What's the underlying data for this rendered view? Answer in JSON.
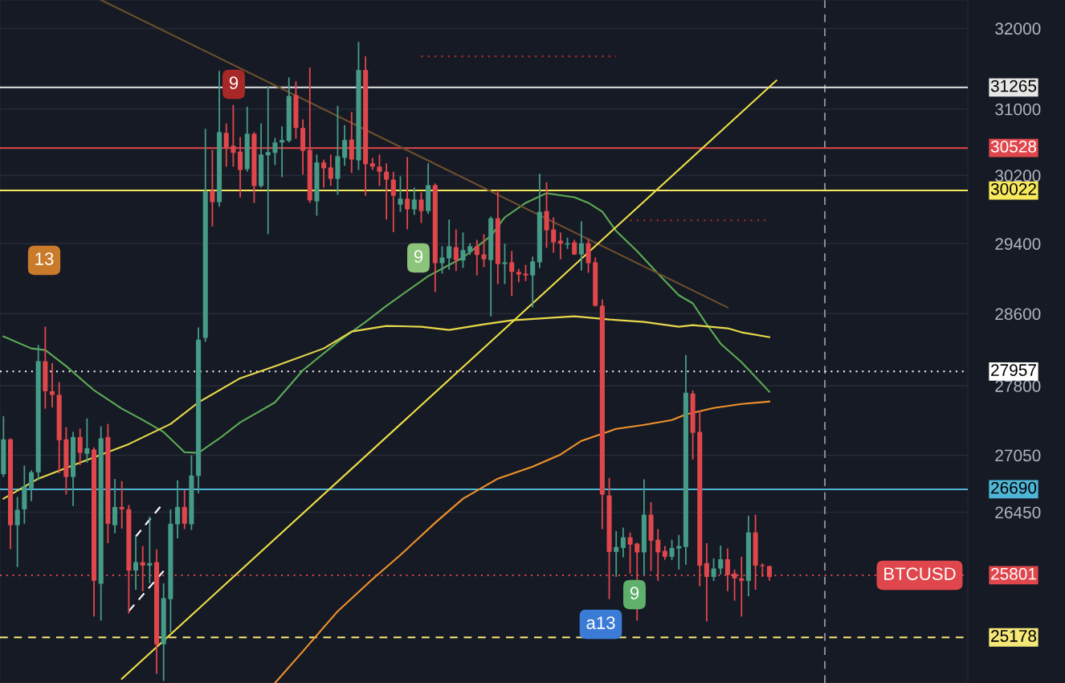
{
  "chart_data": {
    "type": "candlestick",
    "log": true,
    "grid": "y",
    "tick_labels": "y",
    "ylim": [
      24730,
      32360
    ],
    "yticks": [
      26450,
      27050,
      27800,
      28600,
      29400,
      30200,
      31000,
      32000
    ],
    "categories": [
      null,
      null,
      null,
      null,
      null,
      null,
      null,
      null,
      null,
      null,
      null,
      null,
      null,
      null,
      null,
      null,
      null,
      null,
      null,
      null,
      null,
      null,
      null,
      null,
      null,
      null,
      null,
      null,
      null,
      null,
      null,
      null,
      null,
      null,
      null,
      null,
      null,
      null,
      null,
      null,
      null,
      null,
      null,
      null,
      null,
      null,
      null,
      null,
      null,
      null,
      null,
      null,
      null,
      null,
      null,
      null,
      null,
      null,
      null,
      null,
      null,
      null,
      null,
      null,
      null,
      null,
      null,
      null,
      null,
      null,
      null,
      null,
      null,
      null,
      null,
      null,
      null,
      null,
      null,
      null,
      null,
      null,
      null,
      null,
      null,
      null,
      null,
      null,
      null,
      null,
      null,
      null,
      null,
      null,
      null,
      null,
      null,
      null,
      null,
      null,
      null,
      null,
      null,
      null,
      null,
      null,
      null,
      null,
      null,
      null,
      null,
      null,
      null,
      null,
      null,
      null,
      null,
      null,
      null,
      null,
      null,
      null,
      null,
      null,
      null,
      null,
      null,
      null,
      null,
      null,
      null,
      null,
      null,
      null,
      null,
      null,
      null,
      null,
      null
    ],
    "ohlc": [
      [
        26850,
        27470,
        26820,
        27220
      ],
      [
        27220,
        27230,
        26070,
        26315
      ],
      [
        26315,
        26610,
        25885,
        26475
      ],
      [
        26480,
        26940,
        26330,
        26720
      ],
      [
        26700,
        26890,
        26565,
        26870
      ],
      [
        26870,
        28250,
        26785,
        28070
      ],
      [
        28070,
        28455,
        27550,
        27740
      ],
      [
        27740,
        28050,
        27565,
        27700
      ],
      [
        27700,
        27840,
        26860,
        27210
      ],
      [
        27220,
        27350,
        26635,
        26820
      ],
      [
        26820,
        27300,
        26515,
        27245
      ],
      [
        27245,
        27335,
        26945,
        27075
      ],
      [
        27065,
        27445,
        26970,
        27125
      ],
      [
        27110,
        27135,
        25385,
        25745
      ],
      [
        25715,
        27360,
        25345,
        27230
      ],
      [
        27245,
        27385,
        26130,
        26330
      ],
      [
        26315,
        26800,
        26230,
        26505
      ],
      [
        26505,
        26775,
        26280,
        26480
      ],
      [
        26480,
        26525,
        25415,
        25850
      ],
      [
        25850,
        26205,
        25655,
        25935
      ],
      [
        25935,
        26100,
        25640,
        25900
      ],
      [
        25900,
        26405,
        25720,
        25925
      ],
      [
        25935,
        26065,
        24820,
        25110
      ],
      [
        25110,
        25720,
        24750,
        25570
      ],
      [
        25560,
        26480,
        25225,
        26330
      ],
      [
        26325,
        26785,
        26180,
        26505
      ],
      [
        26505,
        26685,
        26275,
        26330
      ],
      [
        26325,
        27050,
        26265,
        26835
      ],
      [
        26830,
        28445,
        26650,
        28310
      ],
      [
        28330,
        30760,
        28285,
        30010
      ],
      [
        30020,
        30505,
        29600,
        29885
      ],
      [
        29885,
        31470,
        29830,
        30720
      ],
      [
        30710,
        30825,
        30305,
        30535
      ],
      [
        30555,
        31050,
        30305,
        30470
      ],
      [
        30485,
        30660,
        29940,
        30265
      ],
      [
        30275,
        31030,
        30245,
        30700
      ],
      [
        30700,
        30720,
        29875,
        30075
      ],
      [
        30075,
        30825,
        30055,
        30450
      ],
      [
        30440,
        31280,
        29510,
        30480
      ],
      [
        30470,
        30650,
        30325,
        30595
      ],
      [
        30595,
        30790,
        30180,
        30625
      ],
      [
        30615,
        31390,
        30595,
        31160
      ],
      [
        31170,
        31340,
        30640,
        30770
      ],
      [
        30770,
        30875,
        30210,
        30495
      ],
      [
        30505,
        31510,
        29875,
        29905
      ],
      [
        29895,
        30450,
        29725,
        30355
      ],
      [
        30355,
        30390,
        30055,
        30285
      ],
      [
        30295,
        30450,
        30075,
        30160
      ],
      [
        30160,
        31040,
        29970,
        30430
      ],
      [
        30410,
        30805,
        30315,
        30625
      ],
      [
        30630,
        30965,
        30230,
        30390
      ],
      [
        30380,
        31830,
        30265,
        31480
      ],
      [
        31480,
        31650,
        29960,
        30335
      ],
      [
        30345,
        30410,
        30265,
        30305
      ],
      [
        30305,
        30450,
        30075,
        30245
      ],
      [
        30245,
        30345,
        29680,
        30150
      ],
      [
        30150,
        30245,
        29535,
        29960
      ],
      [
        29855,
        30190,
        29770,
        29925
      ],
      [
        29925,
        30420,
        29565,
        29800
      ],
      [
        29800,
        30055,
        29735,
        29915
      ],
      [
        29915,
        30000,
        29640,
        29780
      ],
      [
        29780,
        30345,
        29745,
        30085
      ],
      [
        30085,
        30105,
        28845,
        29175
      ],
      [
        29175,
        29370,
        29055,
        29240
      ],
      [
        29230,
        29680,
        29100,
        29370
      ],
      [
        29360,
        29565,
        29085,
        29210
      ],
      [
        29205,
        29530,
        29120,
        29325
      ],
      [
        29305,
        29405,
        29270,
        29370
      ],
      [
        29370,
        29445,
        29035,
        29270
      ],
      [
        29275,
        29510,
        29130,
        29220
      ],
      [
        29210,
        29715,
        28570,
        29695
      ],
      [
        29695,
        30025,
        28935,
        29165
      ],
      [
        29165,
        29400,
        28935,
        29185
      ],
      [
        29185,
        29315,
        28800,
        29075
      ],
      [
        29075,
        29110,
        28955,
        29045
      ],
      [
        29055,
        29155,
        28970,
        29035
      ],
      [
        29035,
        29250,
        28670,
        29195
      ],
      [
        29185,
        30220,
        29120,
        29770
      ],
      [
        29780,
        30120,
        29350,
        29555
      ],
      [
        29565,
        29705,
        29295,
        29415
      ],
      [
        29435,
        29530,
        29220,
        29400
      ],
      [
        29390,
        29470,
        29340,
        29405
      ],
      [
        29415,
        29445,
        29270,
        29275
      ],
      [
        29275,
        29660,
        29090,
        29405
      ],
      [
        29405,
        29455,
        29065,
        29175
      ],
      [
        29185,
        29240,
        28680,
        28690
      ],
      [
        28690,
        28760,
        26275,
        26635
      ],
      [
        26625,
        26810,
        25560,
        26040
      ],
      [
        26040,
        26255,
        25785,
        26090
      ],
      [
        26080,
        26290,
        25985,
        26190
      ],
      [
        26190,
        26240,
        25820,
        26115
      ],
      [
        26125,
        26135,
        25345,
        26035
      ],
      [
        26035,
        26795,
        25805,
        26425
      ],
      [
        26425,
        26555,
        25845,
        26155
      ],
      [
        26165,
        26275,
        25745,
        26035
      ],
      [
        26050,
        26100,
        25960,
        25990
      ],
      [
        25990,
        26165,
        25955,
        26080
      ],
      [
        26075,
        26215,
        25860,
        26100
      ],
      [
        26090,
        28140,
        25910,
        27725
      ],
      [
        27715,
        27750,
        27005,
        27290
      ],
      [
        27300,
        27530,
        25690,
        25900
      ],
      [
        25925,
        26130,
        25335,
        25785
      ],
      [
        25785,
        25975,
        25745,
        25870
      ],
      [
        25870,
        26105,
        25810,
        25965
      ],
      [
        25965,
        26075,
        25640,
        25805
      ],
      [
        25820,
        25860,
        25545,
        25770
      ],
      [
        25770,
        25990,
        25385,
        25745
      ],
      [
        25745,
        26415,
        25590,
        26240
      ],
      [
        26240,
        26425,
        25655,
        25900
      ],
      [
        25900,
        25925,
        25785,
        25895
      ],
      [
        25895,
        25900,
        25745,
        25785
      ],
      null,
      null,
      null,
      null,
      null,
      null,
      null,
      null,
      null,
      null,
      null,
      null,
      null,
      null,
      null,
      null,
      null,
      null,
      null,
      null,
      null,
      null,
      null,
      null,
      null,
      null,
      null,
      null
    ],
    "series": [
      {
        "type": "line",
        "color": "#5cab55",
        "line_style": "solid",
        "values": [
          28345,
          null,
          null,
          null,
          28212,
          null,
          28194,
          null,
          null,
          28016,
          null,
          null,
          null,
          27751,
          null,
          null,
          null,
          27550,
          null,
          null,
          27428,
          null,
          null,
          27298,
          null,
          null,
          27083,
          null,
          27075,
          null,
          null,
          27229,
          null,
          null,
          27402,
          null,
          null,
          null,
          null,
          27619,
          null,
          null,
          null,
          27971,
          null,
          null,
          null,
          null,
          28283,
          null,
          null,
          null,
          28508,
          null,
          null,
          28689,
          null,
          null,
          null,
          null,
          null,
          29027,
          null,
          null,
          null,
          null,
          29240,
          null,
          null,
          null,
          29490,
          null,
          29706,
          null,
          null,
          29876,
          null,
          null,
          29990,
          null,
          null,
          null,
          29942,
          null,
          29876,
          null,
          29772,
          null,
          29546,
          null,
          null,
          29314,
          null,
          null,
          29055,
          null,
          null,
          28808,
          null,
          28717,
          null,
          28481,
          null,
          28265,
          null,
          null,
          28060,
          null,
          null,
          null,
          27734,
          null,
          null,
          null,
          null,
          null,
          null,
          null,
          null,
          null,
          null,
          null,
          null,
          null,
          null,
          null,
          null,
          null,
          null,
          null,
          null,
          null,
          null,
          null,
          null,
          null,
          null,
          null,
          null
        ]
      },
      {
        "type": "line",
        "color": "#e8d84a",
        "line_style": "solid",
        "values": [
          26591,
          null,
          null,
          null,
          null,
          26802,
          null,
          null,
          null,
          null,
          null,
          26972,
          null,
          null,
          null,
          null,
          null,
          null,
          27169,
          null,
          null,
          null,
          null,
          null,
          27385,
          null,
          null,
          null,
          27619,
          null,
          null,
          null,
          null,
          null,
          27883,
          null,
          null,
          null,
          null,
          28016,
          null,
          null,
          null,
          null,
          null,
          null,
          28212,
          null,
          null,
          null,
          28400,
          null,
          null,
          null,
          null,
          28463,
          null,
          null,
          null,
          null,
          28454,
          null,
          null,
          null,
          28418,
          null,
          null,
          null,
          null,
          28481,
          null,
          null,
          null,
          28526,
          null,
          null,
          null,
          null,
          null,
          null,
          null,
          null,
          28571,
          null,
          null,
          null,
          null,
          28535,
          null,
          null,
          null,
          null,
          28508,
          null,
          null,
          null,
          null,
          28454,
          null,
          28472,
          null,
          null,
          null,
          null,
          28436,
          null,
          28391,
          null,
          null,
          null,
          28337,
          null,
          null,
          null,
          null,
          null,
          null,
          null,
          null,
          null,
          null,
          null,
          null,
          null,
          null,
          null,
          null,
          null,
          null,
          null,
          null,
          null,
          null,
          null,
          null,
          null,
          null,
          null,
          null
        ]
      },
      {
        "type": "line",
        "color": "#f0922b",
        "line_style": "solid",
        "values": [
          null,
          null,
          null,
          null,
          null,
          null,
          null,
          null,
          null,
          null,
          null,
          null,
          null,
          null,
          null,
          null,
          null,
          null,
          null,
          null,
          null,
          null,
          null,
          null,
          null,
          null,
          null,
          null,
          null,
          null,
          null,
          null,
          null,
          null,
          null,
          null,
          null,
          null,
          null,
          24730,
          null,
          null,
          null,
          25040,
          null,
          null,
          null,
          null,
          25439,
          null,
          null,
          null,
          null,
          25762,
          null,
          null,
          null,
          26008,
          null,
          null,
          null,
          null,
          26340,
          null,
          null,
          null,
          26591,
          null,
          null,
          null,
          null,
          26802,
          null,
          null,
          null,
          null,
          26929,
          null,
          null,
          null,
          27057,
          null,
          null,
          27203,
          null,
          null,
          null,
          null,
          27333,
          null,
          null,
          null,
          27376,
          null,
          null,
          null,
          27428,
          null,
          27489,
          null,
          null,
          null,
          27558,
          null,
          null,
          null,
          27602,
          null,
          null,
          null,
          27628,
          null,
          null,
          null,
          null,
          null,
          null,
          null,
          null,
          null,
          null,
          null,
          null,
          null,
          null,
          null,
          null,
          null,
          null,
          null,
          null,
          null,
          null,
          null,
          null,
          null,
          null,
          null,
          null
        ]
      },
      {
        "type": "line",
        "color": "#6e4e2e",
        "line_style": "solid",
        "values": [
          null,
          null,
          null,
          null,
          null,
          null,
          null,
          null,
          null,
          null,
          null,
          null,
          null,
          null,
          32360,
          null,
          null,
          null,
          null,
          null,
          null,
          null,
          null,
          null,
          null,
          null,
          null,
          null,
          null,
          null,
          null,
          null,
          null,
          null,
          null,
          null,
          null,
          null,
          null,
          null,
          null,
          null,
          null,
          null,
          null,
          null,
          null,
          null,
          null,
          null,
          null,
          null,
          null,
          null,
          null,
          null,
          null,
          null,
          null,
          null,
          null,
          null,
          null,
          null,
          null,
          null,
          null,
          null,
          null,
          null,
          null,
          null,
          null,
          null,
          null,
          null,
          null,
          null,
          null,
          null,
          null,
          null,
          null,
          null,
          null,
          null,
          null,
          null,
          null,
          null,
          null,
          null,
          null,
          null,
          null,
          null,
          null,
          null,
          null,
          null,
          null,
          null,
          null,
          null,
          28670,
          null,
          null,
          null,
          null,
          null,
          null,
          null,
          null,
          null,
          null,
          null,
          null,
          null,
          null,
          null,
          null,
          null,
          null,
          null,
          null,
          null,
          null,
          null,
          null,
          null,
          null,
          null,
          null,
          null,
          null,
          null,
          null,
          null,
          null
        ]
      },
      {
        "type": "line",
        "color": "#f0e046",
        "line_style": "solid",
        "values": [
          null,
          null,
          null,
          null,
          null,
          null,
          null,
          null,
          null,
          null,
          null,
          null,
          null,
          null,
          null,
          null,
          null,
          24770,
          null,
          null,
          null,
          null,
          null,
          null,
          null,
          null,
          null,
          null,
          null,
          null,
          null,
          null,
          null,
          null,
          null,
          null,
          null,
          null,
          null,
          null,
          null,
          null,
          null,
          null,
          null,
          null,
          null,
          null,
          null,
          null,
          null,
          null,
          null,
          null,
          null,
          null,
          null,
          null,
          null,
          null,
          null,
          null,
          null,
          null,
          null,
          null,
          null,
          null,
          null,
          null,
          null,
          null,
          null,
          null,
          null,
          null,
          null,
          null,
          null,
          null,
          null,
          null,
          null,
          null,
          null,
          null,
          null,
          null,
          null,
          null,
          null,
          null,
          null,
          null,
          null,
          null,
          null,
          null,
          null,
          null,
          null,
          null,
          null,
          null,
          null,
          null,
          null,
          null,
          null,
          null,
          null,
          31350,
          null,
          null,
          null,
          null,
          null,
          null,
          null,
          null,
          null,
          null,
          null,
          null,
          null,
          null,
          null,
          null,
          null,
          null,
          null,
          null,
          null,
          null,
          null,
          null,
          null,
          null,
          null
        ]
      },
      {
        "type": "line",
        "color": "#b32b2b",
        "line_style": "dotted",
        "values": [
          null,
          null,
          null,
          null,
          null,
          null,
          null,
          null,
          null,
          null,
          null,
          null,
          null,
          null,
          null,
          null,
          null,
          null,
          null,
          null,
          null,
          null,
          null,
          null,
          null,
          null,
          null,
          null,
          null,
          null,
          null,
          null,
          null,
          null,
          null,
          null,
          null,
          null,
          null,
          null,
          null,
          null,
          null,
          null,
          null,
          null,
          null,
          null,
          null,
          null,
          null,
          null,
          null,
          null,
          null,
          null,
          null,
          null,
          null,
          null,
          31650,
          null,
          null,
          null,
          null,
          null,
          null,
          null,
          null,
          null,
          null,
          null,
          null,
          null,
          null,
          null,
          null,
          null,
          null,
          null,
          null,
          null,
          null,
          null,
          null,
          null,
          null,
          null,
          31650,
          null,
          null,
          null,
          null,
          null,
          null,
          null,
          null,
          null,
          null,
          null,
          null,
          null,
          null,
          null,
          null,
          null,
          null,
          null,
          null,
          null,
          null,
          null,
          null,
          null,
          null,
          null,
          null,
          null,
          null,
          null,
          null,
          null,
          null,
          null,
          null,
          null,
          null,
          null,
          null,
          null,
          null,
          null,
          null,
          null,
          null,
          null,
          null,
          null,
          null
        ]
      },
      {
        "type": "line",
        "color": "#b32b2b",
        "line_style": "dotted",
        "values": [
          null,
          null,
          null,
          null,
          null,
          null,
          null,
          null,
          null,
          null,
          null,
          null,
          null,
          null,
          null,
          null,
          null,
          null,
          null,
          null,
          null,
          null,
          null,
          null,
          null,
          null,
          null,
          null,
          null,
          null,
          null,
          null,
          null,
          null,
          null,
          null,
          null,
          null,
          null,
          null,
          null,
          null,
          null,
          null,
          null,
          null,
          null,
          null,
          null,
          null,
          null,
          null,
          null,
          null,
          null,
          null,
          null,
          null,
          null,
          null,
          null,
          null,
          null,
          null,
          null,
          null,
          null,
          null,
          null,
          null,
          null,
          null,
          null,
          null,
          null,
          null,
          null,
          null,
          null,
          null,
          null,
          null,
          null,
          null,
          null,
          null,
          null,
          null,
          null,
          null,
          29670,
          null,
          null,
          null,
          null,
          null,
          null,
          null,
          null,
          null,
          null,
          null,
          null,
          null,
          null,
          null,
          null,
          null,
          null,
          null,
          29670,
          null,
          null,
          null,
          null,
          null,
          null,
          null,
          null,
          null,
          null,
          null,
          null,
          null,
          null,
          null,
          null,
          null,
          null,
          null,
          null,
          null,
          null,
          null,
          null,
          null,
          null,
          null,
          null
        ]
      },
      {
        "type": "line",
        "color": "#ffffff",
        "line_style": "dashed",
        "values": [
          null,
          null,
          null,
          null,
          null,
          null,
          null,
          null,
          null,
          null,
          null,
          null,
          null,
          null,
          null,
          null,
          null,
          null,
          25440,
          null,
          null,
          null,
          null,
          25845,
          null,
          null,
          null,
          null,
          null,
          null,
          null,
          null,
          null,
          null,
          null,
          null,
          null,
          null,
          null,
          null,
          null,
          null,
          null,
          null,
          null,
          null,
          null,
          null,
          null,
          null,
          null,
          null,
          null,
          null,
          null,
          null,
          null,
          null,
          null,
          null,
          null,
          null,
          null,
          null,
          null,
          null,
          null,
          null,
          null,
          null,
          null,
          null,
          null,
          null,
          null,
          null,
          null,
          null,
          null,
          null,
          null,
          null,
          null,
          null,
          null,
          null,
          null,
          null,
          null,
          null,
          null,
          null,
          null,
          null,
          null,
          null,
          null,
          null,
          null,
          null,
          null,
          null,
          null,
          null,
          null,
          null,
          null,
          null,
          null,
          null,
          null,
          null,
          null,
          null,
          null,
          null,
          null,
          null,
          null,
          null,
          null,
          null,
          null,
          null,
          null,
          null,
          null,
          null,
          null,
          null,
          null,
          null,
          null,
          null,
          null,
          null,
          null,
          null,
          null
        ]
      },
      {
        "type": "line",
        "color": "#ffffff",
        "line_style": "dashed",
        "values": [
          null,
          null,
          null,
          null,
          null,
          null,
          null,
          null,
          null,
          null,
          null,
          null,
          null,
          null,
          null,
          null,
          null,
          null,
          null,
          26198,
          null,
          null,
          null,
          26549,
          null,
          null,
          null,
          null,
          null,
          null,
          null,
          null,
          null,
          null,
          null,
          null,
          null,
          null,
          null,
          null,
          null,
          null,
          null,
          null,
          null,
          null,
          null,
          null,
          null,
          null,
          null,
          null,
          null,
          null,
          null,
          null,
          null,
          null,
          null,
          null,
          null,
          null,
          null,
          null,
          null,
          null,
          null,
          null,
          null,
          null,
          null,
          null,
          null,
          null,
          null,
          null,
          null,
          null,
          null,
          null,
          null,
          null,
          null,
          null,
          null,
          null,
          null,
          null,
          null,
          null,
          null,
          null,
          null,
          null,
          null,
          null,
          null,
          null,
          null,
          null,
          null,
          null,
          null,
          null,
          null,
          null,
          null,
          null,
          null,
          null,
          null,
          null,
          null,
          null,
          null,
          null,
          null,
          null,
          null,
          null,
          null,
          null,
          null,
          null,
          null,
          null,
          null,
          null,
          null,
          null,
          null,
          null,
          null,
          null,
          null,
          null,
          null,
          null,
          null
        ]
      }
    ],
    "ref_lines": [
      {
        "axis": "y",
        "value": 31265,
        "label": "31265",
        "color": "#e6e6e6",
        "line_style": "solid"
      },
      {
        "axis": "y",
        "value": 30528,
        "label": "30528",
        "color": "#e0474c",
        "line_style": "solid"
      },
      {
        "axis": "y",
        "value": 30022,
        "label": "30022",
        "color": "#f7e85c",
        "line_style": "solid"
      },
      {
        "axis": "y",
        "value": 27957,
        "label": "27957",
        "color": "#ffffff",
        "line_style": "dotted"
      },
      {
        "axis": "y",
        "value": 26690,
        "label": "26690",
        "color": "#4fb6d6",
        "line_style": "solid"
      },
      {
        "axis": "y",
        "value": 25801,
        "label": "25801",
        "color": "#e0474c",
        "line_style": "dotted"
      },
      {
        "axis": "y",
        "value": 25178,
        "label": "25178",
        "color": "#f5e878",
        "line_style": "dashed"
      }
    ],
    "annotations": [
      "13",
      "9",
      "9",
      "9",
      "a13",
      "BTCUSD"
    ]
  }
}
